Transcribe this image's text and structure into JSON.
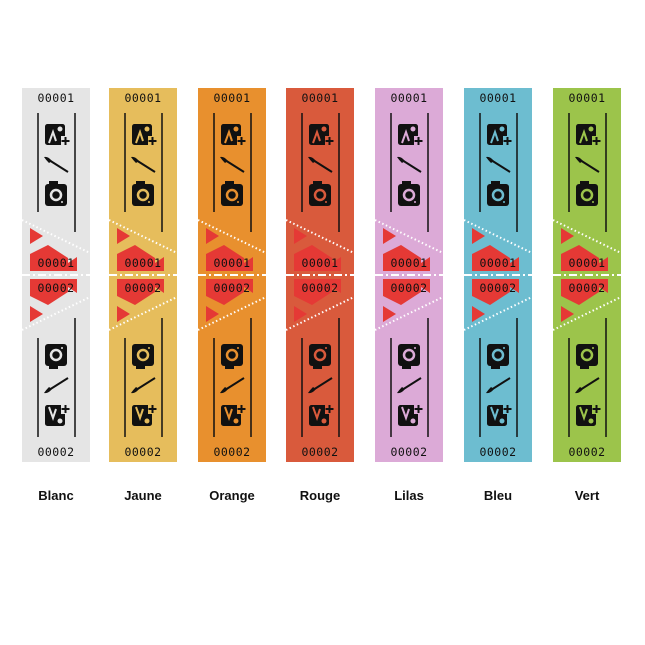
{
  "ticket": {
    "top_number": "00001",
    "bottom_number": "00002",
    "accent_color": "#e53935"
  },
  "rolls": [
    {
      "name": "Blanc",
      "color": "#e5e5e5"
    },
    {
      "name": "Jaune",
      "color": "#e6bd5c"
    },
    {
      "name": "Orange",
      "color": "#e8902e"
    },
    {
      "name": "Rouge",
      "color": "#d95a3c"
    },
    {
      "name": "Lilas",
      "color": "#dcaad7"
    },
    {
      "name": "Bleu",
      "color": "#6dbdd0"
    },
    {
      "name": "Vert",
      "color": "#9cc44b"
    }
  ],
  "icons": [
    "image-plus-icon",
    "paintbrush-icon",
    "camera-icon"
  ]
}
